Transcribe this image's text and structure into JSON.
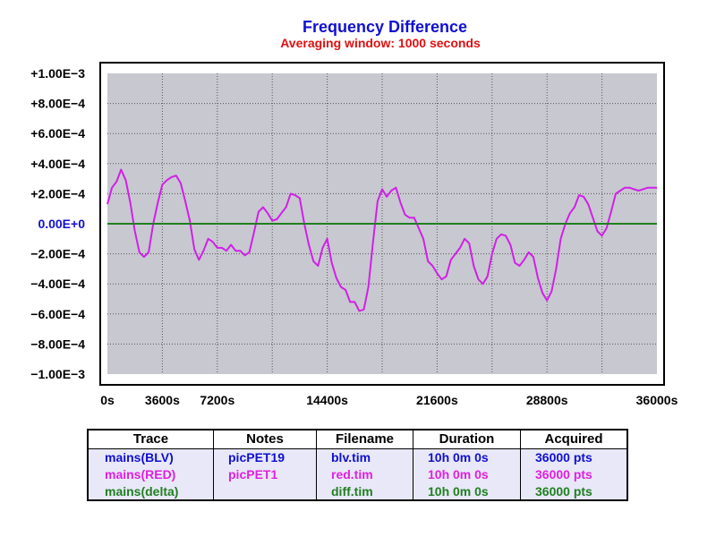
{
  "chart_data": {
    "type": "line",
    "title": "Frequency Difference",
    "subtitle": "Averaging window: 1000 seconds",
    "xlabel": "",
    "ylabel": "",
    "xlim": [
      0,
      36000
    ],
    "ylim": [
      -0.001,
      0.001
    ],
    "x_ticks": [
      "0s",
      "3600s",
      "7200s",
      "14400s",
      "21600s",
      "28800s",
      "36000s"
    ],
    "x_tick_values": [
      0,
      3600,
      7200,
      14400,
      21600,
      28800,
      36000
    ],
    "y_ticks": [
      "+1.00E−3",
      "+8.00E−4",
      "+6.00E−4",
      "+4.00E−4",
      "+2.00E−4",
      "0.00E+0",
      "−2.00E−4",
      "−4.00E−4",
      "−6.00E−4",
      "−8.00E−4",
      "−1.00E−3"
    ],
    "y_tick_values": [
      0.001,
      0.0008,
      0.0006,
      0.0004,
      0.0002,
      0,
      -0.0002,
      -0.0004,
      -0.0006,
      -0.0008,
      -0.001
    ],
    "grid": true,
    "background_color": "#c8c8d0",
    "series": [
      {
        "color": "#d020e8",
        "x": [
          0,
          300,
          600,
          900,
          1200,
          1500,
          1800,
          2100,
          2400,
          2700,
          3000,
          3300,
          3600,
          3900,
          4200,
          4500,
          4800,
          5100,
          5400,
          5700,
          6000,
          6300,
          6600,
          6900,
          7200,
          7500,
          7800,
          8100,
          8400,
          8700,
          9000,
          9300,
          9600,
          9900,
          10200,
          10500,
          10800,
          11100,
          11400,
          11700,
          12000,
          12300,
          12600,
          12900,
          13200,
          13500,
          13800,
          14100,
          14400,
          14700,
          15000,
          15300,
          15600,
          15900,
          16200,
          16500,
          16800,
          17100,
          17400,
          17700,
          18000,
          18300,
          18600,
          18900,
          19200,
          19500,
          19800,
          20100,
          20400,
          20700,
          21000,
          21300,
          21600,
          21900,
          22200,
          22500,
          22800,
          23100,
          23400,
          23700,
          24000,
          24300,
          24600,
          24900,
          25200,
          25500,
          25800,
          26100,
          26400,
          26700,
          27000,
          27300,
          27600,
          27900,
          28200,
          28500,
          28800,
          29100,
          29400,
          29700,
          30000,
          30300,
          30600,
          30900,
          31200,
          31500,
          31800,
          32100,
          32400,
          32700,
          33000,
          33300,
          33600,
          33900,
          34200,
          34500,
          34800,
          35100,
          35400,
          35700,
          36000
        ],
        "y": [
          0.00013,
          0.00024,
          0.00028,
          0.00036,
          0.00029,
          0.00014,
          -5e-05,
          -0.00019,
          -0.00022,
          -0.00019,
          0.0,
          0.00014,
          0.00026,
          0.00029,
          0.00031,
          0.00032,
          0.00027,
          0.00015,
          2e-05,
          -0.00017,
          -0.00024,
          -0.00018,
          -0.0001,
          -0.00012,
          -0.00016,
          -0.00016,
          -0.00018,
          -0.00014,
          -0.00018,
          -0.00018,
          -0.00021,
          -0.00019,
          -6e-05,
          8e-05,
          0.00011,
          7e-05,
          2e-05,
          3e-05,
          7e-05,
          0.00011,
          0.0002,
          0.00019,
          0.00017,
          0.0,
          -0.00014,
          -0.00025,
          -0.00028,
          -0.00016,
          -0.0001,
          -0.00026,
          -0.00036,
          -0.00042,
          -0.00044,
          -0.00052,
          -0.00052,
          -0.00058,
          -0.00057,
          -0.00042,
          -0.00012,
          0.00015,
          0.00023,
          0.00018,
          0.00022,
          0.00024,
          0.00014,
          6e-05,
          4e-05,
          4e-05,
          -3e-05,
          -0.0001,
          -0.00025,
          -0.00028,
          -0.00033,
          -0.00037,
          -0.00035,
          -0.00024,
          -0.0002,
          -0.00016,
          -0.0001,
          -0.00013,
          -0.00028,
          -0.00037,
          -0.0004,
          -0.00035,
          -0.0002,
          -0.0001,
          -7e-05,
          -8e-05,
          -0.00014,
          -0.00026,
          -0.00028,
          -0.00024,
          -0.00019,
          -0.00022,
          -0.00036,
          -0.00046,
          -0.00051,
          -0.00045,
          -0.0003,
          -0.0001,
          0.0,
          7e-05,
          0.00011,
          0.00019,
          0.00018,
          0.00013,
          4e-05,
          -5e-05,
          -8e-05,
          -3e-05,
          8e-05,
          0.0002,
          0.00022,
          0.00024,
          0.00024,
          0.00023,
          0.00022,
          0.00023,
          0.00024,
          0.00024,
          0.00024
        ]
      },
      {
        "color": "#208020",
        "x": [
          0,
          36000
        ],
        "y": [
          0,
          0
        ]
      }
    ]
  },
  "legend": {
    "headers": [
      "Trace",
      "Notes",
      "Filename",
      "Duration",
      "Acquired"
    ],
    "rows": [
      {
        "trace": "mains(BLV)",
        "notes": "picPET19",
        "filename": "blv.tim",
        "duration": "10h 0m 0s",
        "acquired": "36000 pts",
        "color": "#1010d0"
      },
      {
        "trace": "mains(RED)",
        "notes": "picPET1",
        "filename": "red.tim",
        "duration": "10h 0m 0s",
        "acquired": "36000 pts",
        "color": "#e020e0"
      },
      {
        "trace": "mains(delta)",
        "notes": "",
        "filename": "diff.tim",
        "duration": "10h 0m 0s",
        "acquired": "36000 pts",
        "color": "#208020"
      }
    ]
  }
}
